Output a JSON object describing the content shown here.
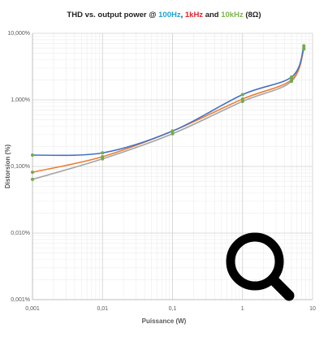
{
  "chart_data": {
    "type": "line",
    "title_parts": [
      "THD vs. output power @",
      ",",
      "and",
      "(8Ω)"
    ],
    "x_label": "Puissance (W)",
    "y_label": "Distorsion  (%)",
    "x": [
      0.001,
      0.01,
      0.1,
      1,
      5,
      7.5
    ],
    "series": [
      {
        "name": "100Hz",
        "color": "#4472c4",
        "label_color": "#1ca3d8",
        "values": [
          0.148,
          0.16,
          0.34,
          1.2,
          2.2,
          6
        ]
      },
      {
        "name": "1kHz",
        "color": "#ed7d31",
        "label_color": "#e8202a",
        "values": [
          0.082,
          0.14,
          0.34,
          1.03,
          2.0,
          5.8
        ]
      },
      {
        "name": "10kHz",
        "color": "#a5a5a5",
        "label_color": "#7ab648",
        "values": [
          0.064,
          0.13,
          0.31,
          0.95,
          1.9,
          6.5
        ]
      }
    ],
    "marker_color": "#70ad47",
    "xscale": "log",
    "yscale": "log",
    "grid": true,
    "xlim": [
      0.001,
      10
    ],
    "xticks": [
      {
        "value": 0.001,
        "label": "0,001"
      },
      {
        "value": 0.01,
        "label": "0,01"
      },
      {
        "value": 0.1,
        "label": "0,1"
      },
      1,
      10
    ],
    "ylim": [
      0.001,
      10
    ],
    "yticks": [
      {
        "value": 0.001,
        "label": "0,001%"
      },
      {
        "value": 0.01,
        "label": "0,010%"
      },
      {
        "value": 0.1,
        "label": "0,100%"
      },
      {
        "value": 1,
        "label": "1,000%"
      },
      {
        "value": 10,
        "label": "10,000%"
      }
    ]
  }
}
